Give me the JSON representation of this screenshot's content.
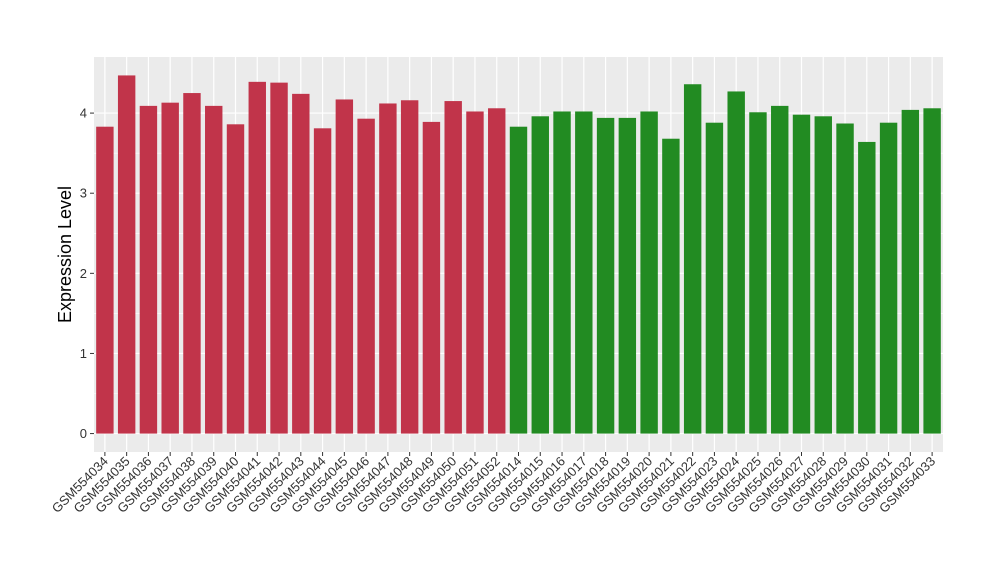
{
  "chart_data": {
    "type": "bar",
    "ylabel": "Expression Level",
    "xlabel": "",
    "ylim": [
      -0.23,
      4.7
    ],
    "yticks": [
      0,
      1,
      2,
      3,
      4
    ],
    "grid": true,
    "categories": [
      "GSM554034",
      "GSM554035",
      "GSM554036",
      "GSM554037",
      "GSM554038",
      "GSM554039",
      "GSM554040",
      "GSM554041",
      "GSM554042",
      "GSM554043",
      "GSM554044",
      "GSM554045",
      "GSM554046",
      "GSM554047",
      "GSM554048",
      "GSM554049",
      "GSM554050",
      "GSM554051",
      "GSM554052",
      "GSM554014",
      "GSM554015",
      "GSM554016",
      "GSM554017",
      "GSM554018",
      "GSM554019",
      "GSM554020",
      "GSM554021",
      "GSM554022",
      "GSM554023",
      "GSM554024",
      "GSM554025",
      "GSM554026",
      "GSM554027",
      "GSM554028",
      "GSM554029",
      "GSM554030",
      "GSM554031",
      "GSM554032",
      "GSM554033"
    ],
    "values": [
      3.83,
      4.47,
      4.09,
      4.13,
      4.25,
      4.09,
      3.86,
      4.39,
      4.38,
      4.24,
      3.81,
      4.17,
      3.93,
      4.12,
      4.16,
      3.89,
      4.15,
      4.02,
      4.06,
      3.83,
      3.96,
      4.02,
      4.02,
      3.94,
      3.94,
      4.02,
      3.68,
      4.36,
      3.88,
      4.27,
      4.01,
      4.09,
      3.98,
      3.96,
      3.87,
      3.64,
      3.88,
      4.04,
      4.06
    ],
    "bar_colors": [
      "#c1344a",
      "#c1344a",
      "#c1344a",
      "#c1344a",
      "#c1344a",
      "#c1344a",
      "#c1344a",
      "#c1344a",
      "#c1344a",
      "#c1344a",
      "#c1344a",
      "#c1344a",
      "#c1344a",
      "#c1344a",
      "#c1344a",
      "#c1344a",
      "#c1344a",
      "#c1344a",
      "#c1344a",
      "#228b22",
      "#228b22",
      "#228b22",
      "#228b22",
      "#228b22",
      "#228b22",
      "#228b22",
      "#228b22",
      "#228b22",
      "#228b22",
      "#228b22",
      "#228b22",
      "#228b22",
      "#228b22",
      "#228b22",
      "#228b22",
      "#228b22",
      "#228b22",
      "#228b22",
      "#228b22"
    ],
    "colors": {
      "panel": "#ebebeb",
      "grid": "#ffffff"
    }
  }
}
